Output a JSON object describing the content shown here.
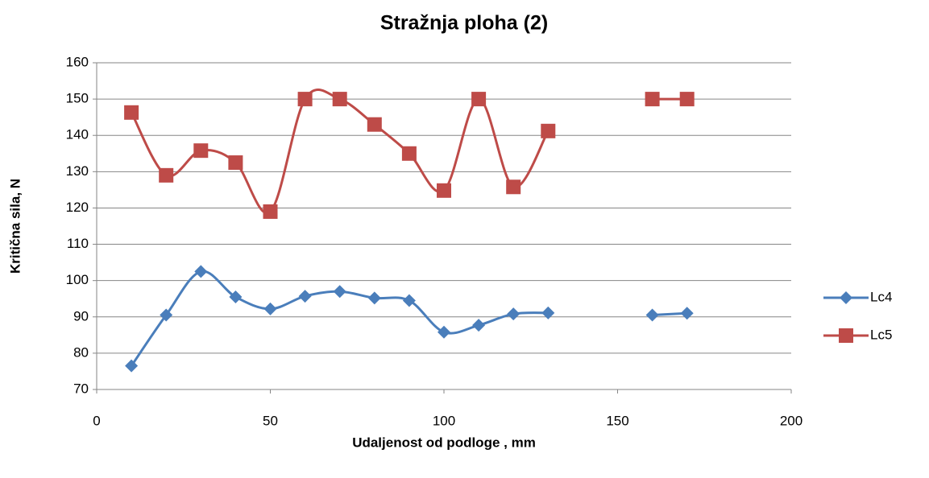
{
  "chart_data": {
    "type": "line",
    "title": "Stražnja ploha (2)",
    "x_label": "Udaljenost od podloge , mm",
    "y_label": "Kritična sila, N",
    "x": [
      10,
      20,
      30,
      40,
      50,
      60,
      70,
      80,
      90,
      100,
      110,
      120,
      130,
      140,
      150,
      160,
      170
    ],
    "series": [
      {
        "name": "Lc4",
        "color": "#4a7ebb",
        "marker": "diamond",
        "values": [
          76.5,
          90.5,
          102.5,
          95.5,
          92.2,
          95.7,
          97,
          95.2,
          94.5,
          85.8,
          87.7,
          90.8,
          91.1,
          null,
          null,
          90.5,
          91
        ]
      },
      {
        "name": "Lc5",
        "color": "#be4b48",
        "marker": "square",
        "values": [
          146.3,
          129,
          135.8,
          132.5,
          119,
          150,
          150,
          143,
          135,
          124.8,
          150,
          125.8,
          141.2,
          null,
          null,
          150,
          150
        ]
      }
    ],
    "xlim": [
      0,
      200
    ],
    "xticks": [
      0,
      50,
      100,
      150,
      200
    ],
    "ylim": [
      70,
      160
    ],
    "yticks": [
      70,
      80,
      90,
      100,
      110,
      120,
      130,
      140,
      150,
      160
    ],
    "grid": true,
    "legend": "right",
    "smooth": true
  }
}
